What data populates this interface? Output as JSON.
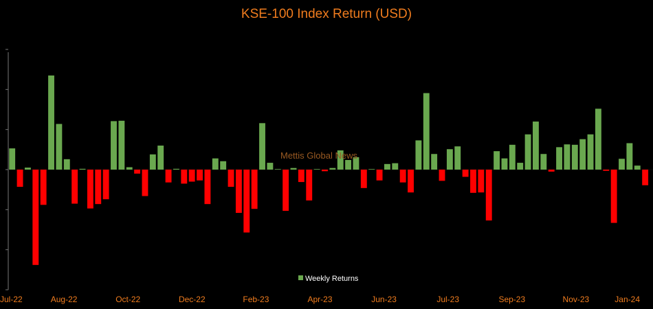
{
  "chart_data": {
    "type": "bar",
    "title": "KSE-100 Index Return (USD)",
    "legend": {
      "label": "Weekly Returns",
      "position": "bottom-center"
    },
    "watermark": "Mettis Global News",
    "x_tick_labels": [
      "Jul-22",
      "Aug-22",
      "Oct-22",
      "Dec-22",
      "Feb-23",
      "Apr-23",
      "Jun-23",
      "Jul-23",
      "Sep-23",
      "Nov-23",
      "Jan-24"
    ],
    "ylim": [
      -3,
      3
    ],
    "y_tick_values": [
      -3,
      -2,
      -1,
      0,
      1,
      2,
      3
    ],
    "grid": false,
    "colors": {
      "positive": "#6aa84f",
      "negative": "#ff0000",
      "text": "#f07c1e",
      "axis": "#777777"
    },
    "values": [
      0.53,
      -0.43,
      0.05,
      -2.38,
      -0.88,
      2.35,
      1.14,
      0.26,
      -0.85,
      0.02,
      -0.97,
      -0.86,
      -0.74,
      1.21,
      1.22,
      0.06,
      -0.1,
      -0.66,
      0.38,
      0.6,
      -0.32,
      0.02,
      -0.35,
      -0.3,
      -0.27,
      -0.86,
      0.28,
      0.21,
      -0.43,
      -1.08,
      -1.57,
      -0.98,
      1.16,
      0.17,
      0.0,
      -1.03,
      0.04,
      -0.31,
      -0.77,
      0.0,
      -0.04,
      0.04,
      0.48,
      0.24,
      0.31,
      -0.46,
      0.0,
      -0.27,
      0.14,
      0.16,
      -0.32,
      -0.57,
      0.73,
      1.91,
      0.39,
      -0.28,
      0.51,
      0.58,
      -0.18,
      -0.58,
      -0.57,
      -1.27,
      0.46,
      0.28,
      0.62,
      0.17,
      0.88,
      1.2,
      0.39,
      -0.05,
      0.56,
      0.63,
      0.62,
      0.76,
      0.88,
      1.52,
      -0.03,
      -1.33,
      0.27,
      0.66,
      0.1,
      -0.39
    ]
  }
}
